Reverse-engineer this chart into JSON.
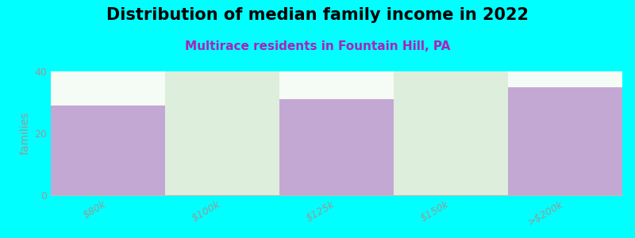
{
  "title": "Distribution of median family income in 2022",
  "subtitle": "Multirace residents in Fountain Hill, PA",
  "categories": [
    "$80k",
    "$100k",
    "$125k",
    "$150k",
    ">$200k"
  ],
  "values": [
    29,
    40,
    31,
    40,
    35
  ],
  "bar_colors": [
    "#c4a8d4",
    "#ddeedd",
    "#c4a8d4",
    "#ddeedd",
    "#c4a8d4"
  ],
  "background_color": "#00ffff",
  "plot_bg_color": "#f5fbf5",
  "ylim": [
    0,
    40
  ],
  "yticks": [
    0,
    20,
    40
  ],
  "ylabel": "families",
  "title_fontsize": 15,
  "subtitle_fontsize": 11,
  "subtitle_color": "#aa22bb",
  "tick_label_color": "#999999",
  "axis_color": "#bbbbbb",
  "bar_width": 1.0,
  "figsize": [
    8.0,
    3.0
  ],
  "dpi": 100
}
